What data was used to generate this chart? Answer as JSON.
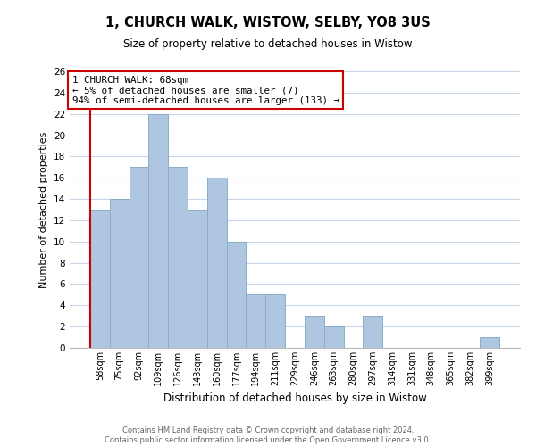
{
  "title": "1, CHURCH WALK, WISTOW, SELBY, YO8 3US",
  "subtitle": "Size of property relative to detached houses in Wistow",
  "xlabel": "Distribution of detached houses by size in Wistow",
  "ylabel": "Number of detached properties",
  "bar_labels": [
    "58sqm",
    "75sqm",
    "92sqm",
    "109sqm",
    "126sqm",
    "143sqm",
    "160sqm",
    "177sqm",
    "194sqm",
    "211sqm",
    "229sqm",
    "246sqm",
    "263sqm",
    "280sqm",
    "297sqm",
    "314sqm",
    "331sqm",
    "348sqm",
    "365sqm",
    "382sqm",
    "399sqm"
  ],
  "bar_values": [
    13,
    14,
    17,
    22,
    17,
    13,
    16,
    10,
    5,
    5,
    0,
    3,
    2,
    0,
    3,
    0,
    0,
    0,
    0,
    0,
    1
  ],
  "bar_color": "#aec6df",
  "bar_edge_color": "#8aaec8",
  "marker_color": "#cc0000",
  "ylim": [
    0,
    26
  ],
  "yticks": [
    0,
    2,
    4,
    6,
    8,
    10,
    12,
    14,
    16,
    18,
    20,
    22,
    24,
    26
  ],
  "annotation_title": "1 CHURCH WALK: 68sqm",
  "annotation_line1": "← 5% of detached houses are smaller (7)",
  "annotation_line2": "94% of semi-detached houses are larger (133) →",
  "annotation_box_color": "#ffffff",
  "annotation_box_edge": "#cc0000",
  "footer_line1": "Contains HM Land Registry data © Crown copyright and database right 2024.",
  "footer_line2": "Contains public sector information licensed under the Open Government Licence v3.0.",
  "background_color": "#ffffff",
  "grid_color": "#c8d4e8"
}
